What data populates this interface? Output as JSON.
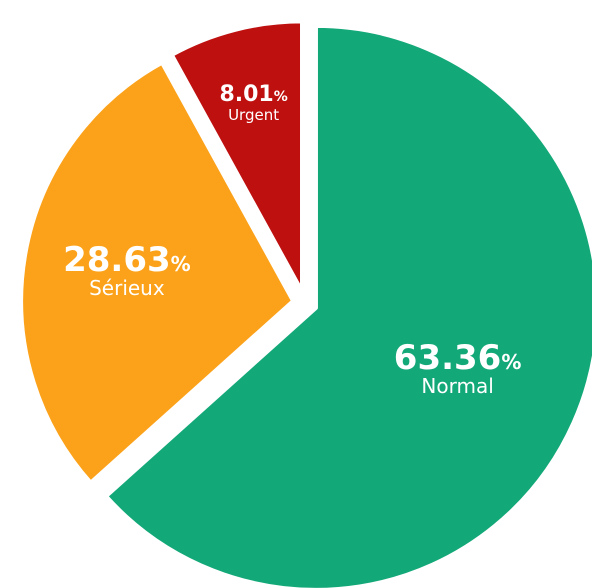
{
  "chart_data": {
    "type": "pie",
    "unit": "%",
    "slices": [
      {
        "label": "Normal",
        "value": 63.36,
        "value_text": "63.36",
        "color": "#13a878"
      },
      {
        "label": "Sérieux",
        "value": 28.63,
        "value_text": "28.63",
        "color": "#fba21a"
      },
      {
        "label": "Urgent",
        "value": 8.01,
        "value_text": "8.01",
        "color": "#bf1010"
      }
    ],
    "start_angle_deg": 0,
    "direction": "clockwise",
    "exploded": true,
    "legend": "none"
  }
}
